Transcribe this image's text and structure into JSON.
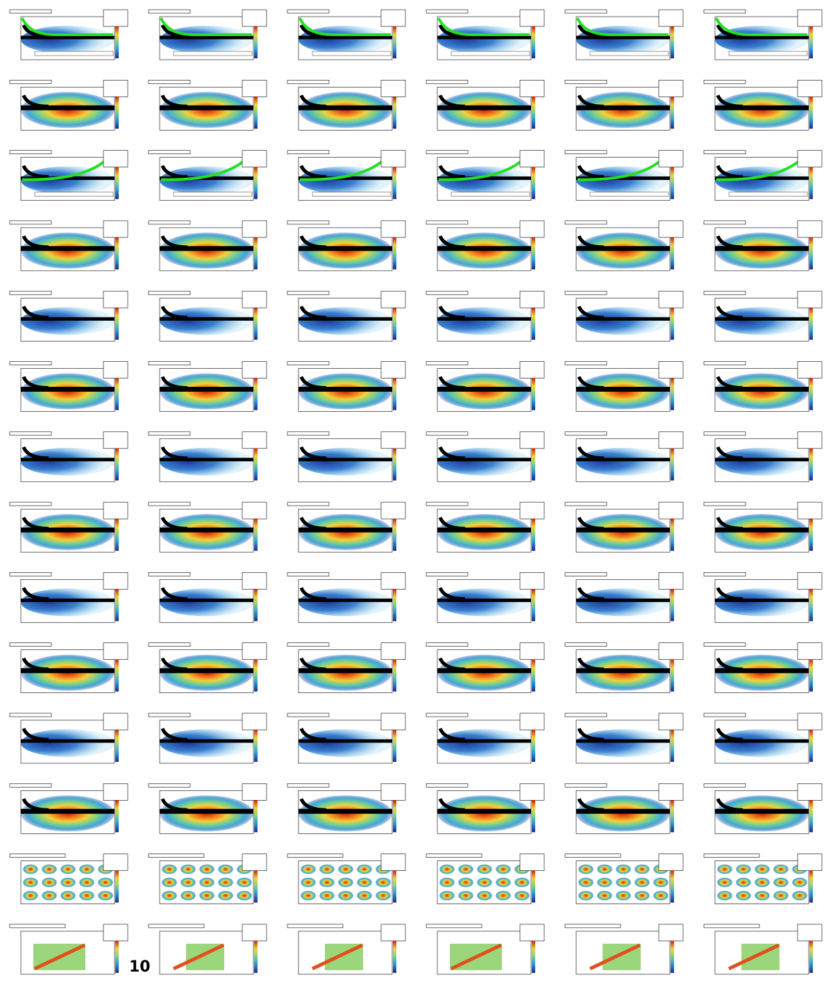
{
  "page_label": "10"
}
